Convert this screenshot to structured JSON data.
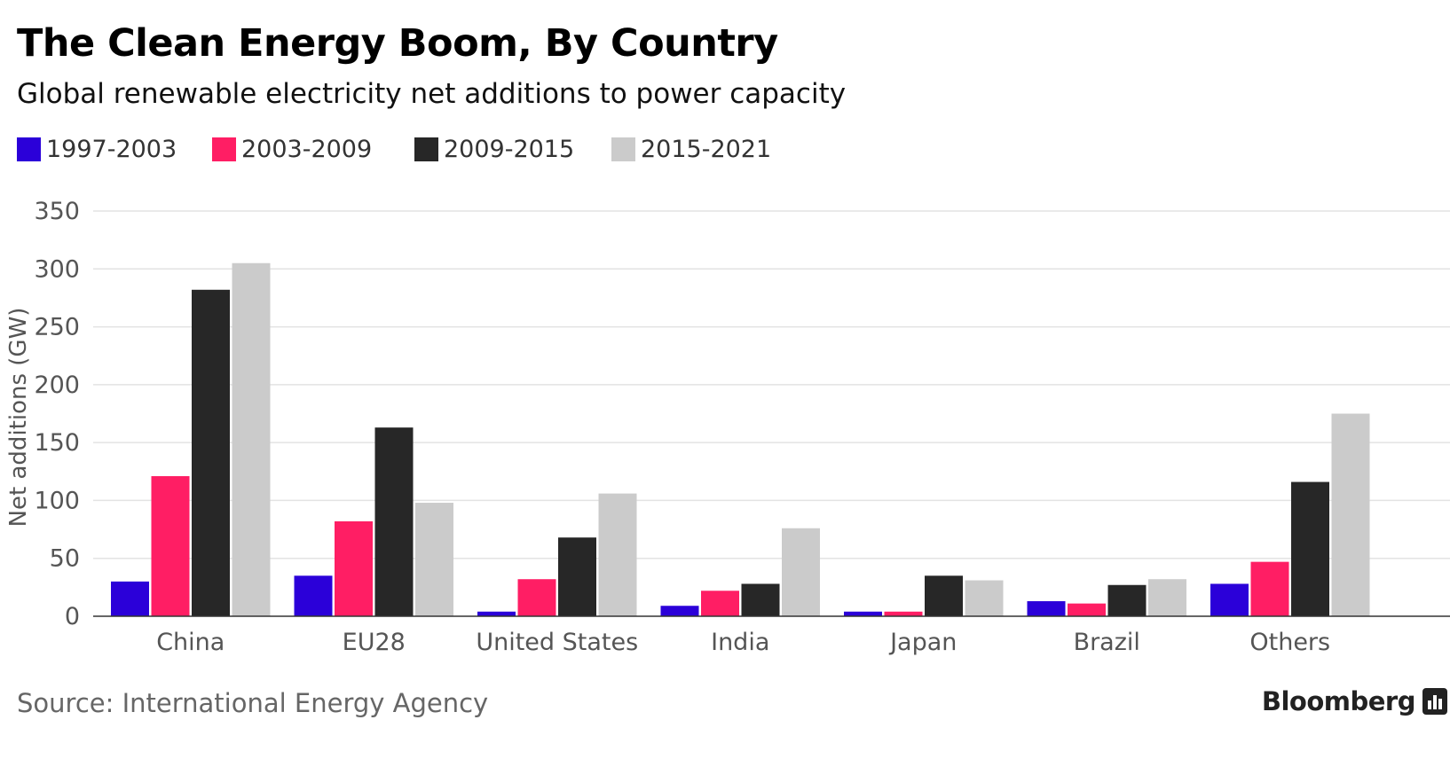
{
  "chart_data": {
    "type": "bar",
    "title": "The Clean Energy Boom, By Country",
    "subtitle": "Global renewable electricity net additions to power capacity",
    "ylabel": "Net additions (GW)",
    "xlabel": "",
    "ylim": [
      0,
      350
    ],
    "yticks": [
      0,
      50,
      100,
      150,
      200,
      250,
      300,
      350
    ],
    "grid": true,
    "legend_position": "top-left",
    "categories": [
      "China",
      "EU28",
      "United States",
      "India",
      "Japan",
      "Brazil",
      "Others"
    ],
    "series": [
      {
        "name": "1997-2003",
        "color": "#2b00d9",
        "values": [
          30,
          35,
          4,
          9,
          4,
          13,
          28
        ]
      },
      {
        "name": "2003-2009",
        "color": "#ff1e64",
        "values": [
          121,
          82,
          32,
          22,
          4,
          11,
          47
        ]
      },
      {
        "name": "2009-2015",
        "color": "#272727",
        "values": [
          282,
          163,
          68,
          28,
          35,
          27,
          116
        ]
      },
      {
        "name": "2015-2021",
        "color": "#cbcbcb",
        "values": [
          305,
          98,
          106,
          76,
          31,
          32,
          175
        ]
      }
    ],
    "source": "Source: International Energy Agency"
  },
  "brand": {
    "name": "Bloomberg",
    "icon": "bloomberg-terminal-icon"
  }
}
